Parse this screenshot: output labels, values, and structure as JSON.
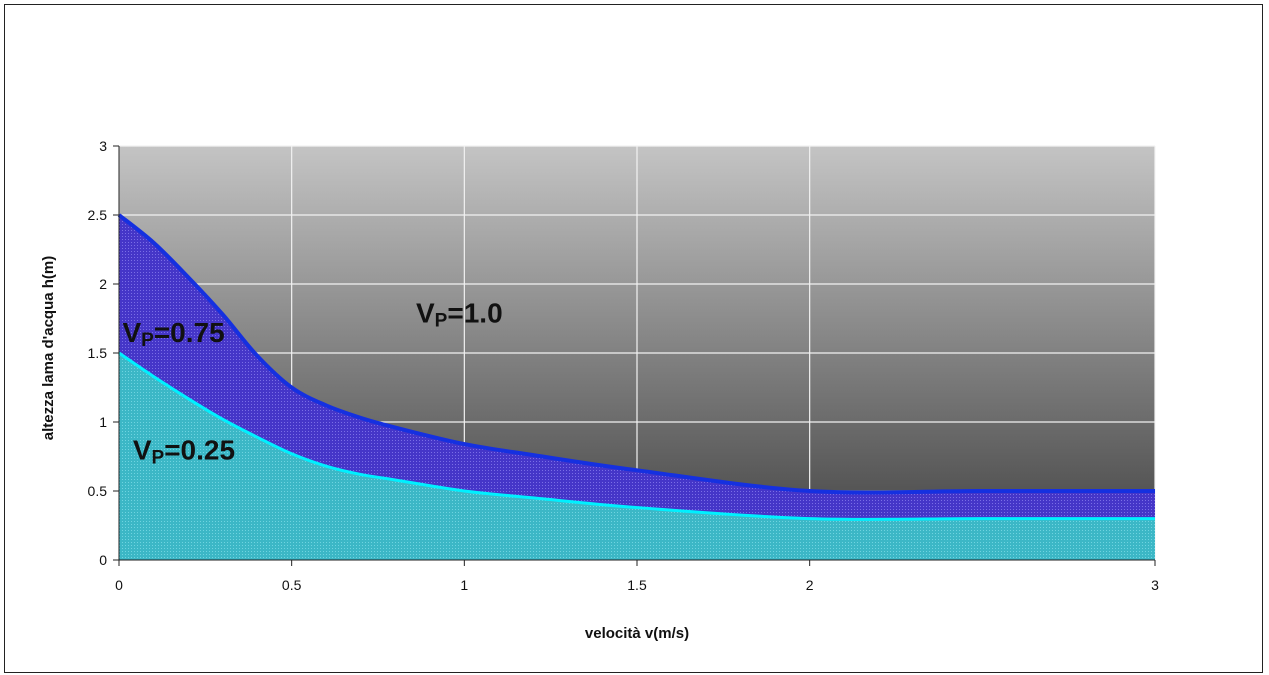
{
  "chart_data": {
    "type": "area",
    "xlabel": "velocità v(m/s)",
    "ylabel": "altezza lama d'acqua h(m)",
    "xlim": [
      0,
      3
    ],
    "ylim": [
      0,
      3
    ],
    "xticks": [
      "0",
      "0.5",
      "1",
      "1.5",
      "2",
      "3"
    ],
    "xtick_values": [
      0,
      0.5,
      1,
      1.5,
      2,
      3
    ],
    "yticks": [
      "0",
      "0.5",
      "1",
      "1.5",
      "2",
      "2.5",
      "3"
    ],
    "ytick_values": [
      0,
      0.5,
      1,
      1.5,
      2,
      2.5,
      3
    ],
    "grid": true,
    "legend": "none",
    "series": [
      {
        "name": "VP=0.25",
        "color": "#39b8c9",
        "line_color": "#00f0ff",
        "x": [
          0,
          0.1,
          0.2,
          0.3,
          0.4,
          0.5,
          0.6,
          0.7,
          0.8,
          1.0,
          1.2,
          1.5,
          2.0,
          2.5,
          3.0
        ],
        "values": [
          1.5,
          1.33,
          1.17,
          1.02,
          0.89,
          0.77,
          0.68,
          0.62,
          0.58,
          0.5,
          0.45,
          0.38,
          0.3,
          0.3,
          0.3
        ]
      },
      {
        "name": "VP=0.75",
        "color": "#4a3bd0",
        "line_color": "#1530e0",
        "x": [
          0,
          0.1,
          0.2,
          0.3,
          0.4,
          0.5,
          0.6,
          0.7,
          0.8,
          1.0,
          1.2,
          1.5,
          2.0,
          2.5,
          3.0
        ],
        "values": [
          2.5,
          2.3,
          2.05,
          1.78,
          1.48,
          1.25,
          1.12,
          1.03,
          0.96,
          0.84,
          0.76,
          0.65,
          0.5,
          0.5,
          0.5
        ]
      }
    ],
    "annotations": [
      {
        "main": "V",
        "sub": "P",
        "rest": "=0.75",
        "x": 0.01,
        "y": 1.58
      },
      {
        "main": "V",
        "sub": "P",
        "rest": "=1.0",
        "x": 0.86,
        "y": 1.72
      },
      {
        "main": "V",
        "sub": "P",
        "rest": "=0.25",
        "x": 0.04,
        "y": 0.73
      }
    ]
  }
}
